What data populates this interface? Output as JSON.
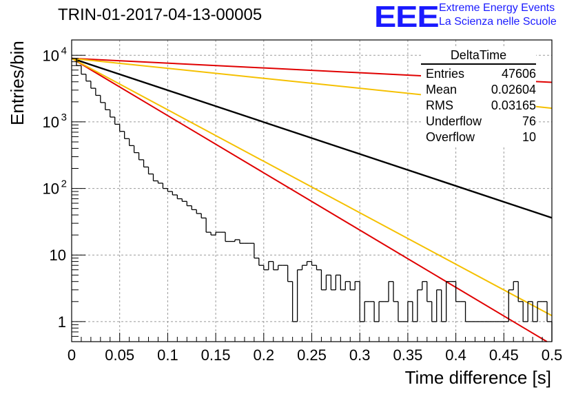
{
  "header": {
    "title": "TRIN-01-2017-04-13-00005",
    "logo_text": "EEE",
    "logo_line1": "Extreme Energy Events",
    "logo_line2": "La Scienza nelle Scuole"
  },
  "stats_box": {
    "name": "DeltaTime",
    "rows": [
      {
        "label": "Entries",
        "value": "47606"
      },
      {
        "label": "Mean",
        "value": "0.02604"
      },
      {
        "label": "RMS",
        "value": "0.03165"
      },
      {
        "label": "Underflow",
        "value": "76"
      },
      {
        "label": "Overflow",
        "value": "10"
      }
    ]
  },
  "chart_data": {
    "type": "bar",
    "title": "TRIN-01-2017-04-13-00005",
    "xlabel": "Time difference [s]",
    "ylabel": "Entries/bin",
    "xlim": [
      0,
      0.5
    ],
    "ylim": [
      0.5,
      17000
    ],
    "yscale": "log",
    "grid": true,
    "xticks": [
      "0",
      "0.05",
      "0.1",
      "0.15",
      "0.2",
      "0.25",
      "0.3",
      "0.35",
      "0.4",
      "0.45",
      "0.5"
    ],
    "yticks": [
      {
        "value": 1,
        "label": "1"
      },
      {
        "value": 10,
        "label": "10"
      },
      {
        "value": 100,
        "label": "10",
        "exp": "2"
      },
      {
        "value": 1000,
        "label": "10",
        "exp": "3"
      },
      {
        "value": 10000,
        "label": "10",
        "exp": "4"
      }
    ],
    "histogram": {
      "bin_width": 0.005,
      "color": "#000000",
      "counts": [
        9000,
        7000,
        5200,
        4100,
        3200,
        2500,
        1950,
        1520,
        1180,
        920,
        720,
        560,
        440,
        345,
        270,
        210,
        165,
        130,
        120,
        100,
        90,
        80,
        70,
        64,
        55,
        48,
        42,
        36,
        22,
        20,
        22,
        22,
        16,
        16,
        17,
        15,
        15,
        15,
        9,
        7,
        6,
        8,
        6,
        7,
        7,
        4,
        1,
        6,
        7,
        8,
        7,
        6,
        3,
        5,
        3,
        5,
        3,
        4,
        3,
        4,
        1,
        2,
        2,
        1,
        2,
        2,
        4,
        2,
        1,
        1,
        2,
        1,
        3,
        4,
        2,
        1,
        3,
        1,
        4,
        4,
        2,
        2,
        1,
        1,
        1,
        1,
        1,
        1,
        1,
        1,
        1,
        3,
        4,
        2,
        1,
        2,
        1,
        2,
        2,
        1
      ]
    },
    "lines": [
      {
        "name": "",
        "color": "#000000",
        "y0": 9000,
        "slope": -11.03
      },
      {
        "name": "",
        "color": "#e00000",
        "y0": 9000,
        "slope": -19.8
      },
      {
        "name": "",
        "color": "#f5c000",
        "y0": 9000,
        "slope": -17.8
      },
      {
        "name": "",
        "color": "#e00000",
        "y0": 9000,
        "slope": -1.66
      },
      {
        "name": "",
        "color": "#f5c000",
        "y0": 9000,
        "slope": -3.45
      }
    ]
  }
}
